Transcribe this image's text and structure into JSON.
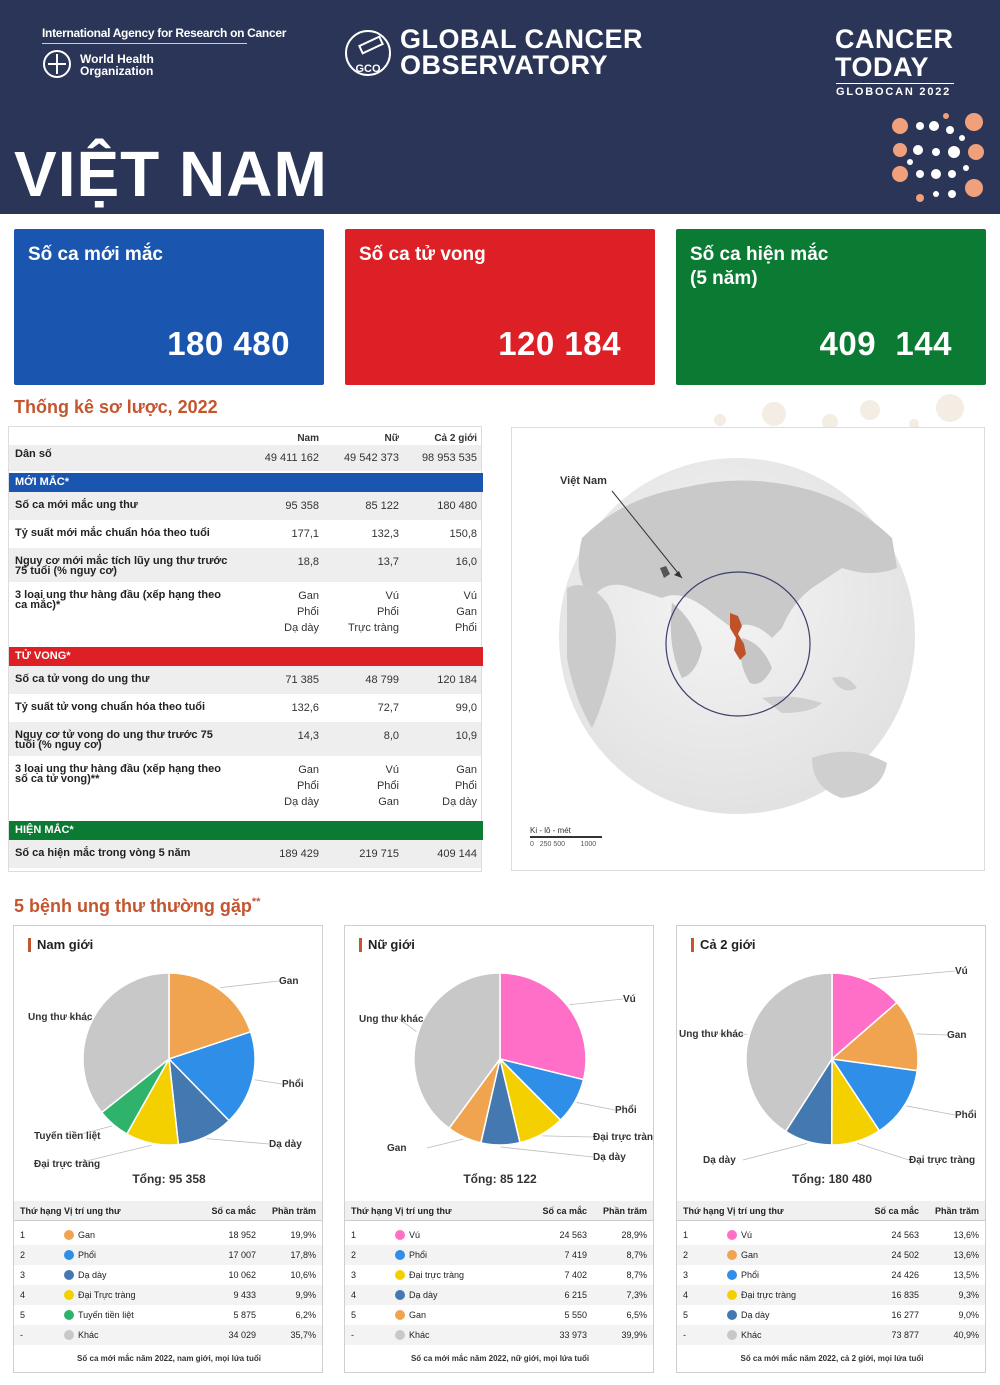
{
  "header": {
    "iarc": "International Agency for Research on Cancer",
    "who_line1": "World Health",
    "who_line2": "Organization",
    "gco_badge": "GCO",
    "gco_line1": "GLOBAL CANCER",
    "gco_line2": "OBSERVATORY",
    "ct_line1": "CANCER",
    "ct_line2": "TODAY",
    "ct_line3": "GLOBOCAN 2022",
    "country": "VIỆT NAM"
  },
  "kpis": [
    {
      "label": "Số ca mới mắc",
      "value": "180 480",
      "color": "#1a56b0"
    },
    {
      "label": "Số ca tử vong",
      "value": "120 184",
      "color": "#dd1f26"
    },
    {
      "label": "Số ca hiện mắc\n(5 năm)",
      "value": "409  144",
      "color": "#0b7a32"
    }
  ],
  "summary": {
    "title": "Thống kê sơ lược, 2022",
    "col_male": "Nam",
    "col_female": "Nữ",
    "col_both": "Cả 2 giới",
    "population": {
      "label": "Dân số",
      "male": "49 411 162",
      "female": "49 542 373",
      "both": "98 953 535"
    },
    "incidence_header": "MỚI MẮC*",
    "incidence_rows": [
      {
        "label": "Số ca mới mắc ung thư",
        "male": "95 358",
        "female": "85 122",
        "both": "180 480"
      },
      {
        "label": "Tỷ suất mới mắc chuẩn hóa theo tuổi",
        "male": "177,1",
        "female": "132,3",
        "both": "150,8"
      },
      {
        "label": "Nguy cơ mới mắc tích lũy ung thư trước\n75 tuổi (% nguy cơ)",
        "male": "18,8",
        "female": "13,7",
        "both": "16,0"
      },
      {
        "label": "3 loại ung thư hàng đầu (xếp hạng theo\nca mắc)*",
        "male": "Gan\nPhổi\nDạ dày",
        "female": "Vú\nPhổi\nTrực tràng",
        "both": "Vú\nGan\nPhổi"
      }
    ],
    "mortality_header": "TỬ VONG*",
    "mortality_rows": [
      {
        "label": "Số ca tử vong do ung thư",
        "male": "71 385",
        "female": "48 799",
        "both": "120 184"
      },
      {
        "label": "Tỷ suất tử vong chuẩn hóa theo tuổi",
        "male": "132,6",
        "female": "72,7",
        "both": "99,0"
      },
      {
        "label": "Nguy cơ tử vong do ung thư trước 75\ntuổi (% nguy cơ)",
        "male": "14,3",
        "female": "8,0",
        "both": "10,9"
      },
      {
        "label": "3 loại ung thư hàng đầu (xếp hạng theo\nsố ca tử vong)**",
        "male": "Gan\nPhổi\nDạ dày",
        "female": "Vú\nPhổi\nGan",
        "both": "Gan\nPhổi\nDạ dày"
      }
    ],
    "prevalence_header": "HIỆN MẮC*",
    "prevalence_rows": [
      {
        "label": "Số ca hiện mắc trong vòng 5 năm",
        "male": "189 429",
        "female": "219 715",
        "both": "409 144"
      }
    ],
    "colors": {
      "incidence": "#1a56b0",
      "mortality": "#dd1f26",
      "prevalence": "#0b7a32"
    }
  },
  "map": {
    "country_label": "Việt Nam",
    "scale_title": "Ki - lô - mét",
    "scale_ticks": "0   250 500        1000"
  },
  "top5": {
    "title": "5 bệnh ung thư thường gặp",
    "title_mark": "**",
    "table_headers": {
      "rank": "Thứ hạng",
      "site": "Vị trí ung thư",
      "cases": "Số ca mắc",
      "pct": "Phần trăm"
    }
  },
  "chart_data": [
    {
      "type": "pie",
      "title": "Nam giới",
      "total_label": "Tổng: 95 358",
      "labels": [
        "Gan",
        "Phổi",
        "Dạ dày",
        "Đại Trực tràng",
        "Tuyến tiền liệt",
        "Khác"
      ],
      "pie_labels": [
        "Gan",
        "Phổi",
        "Dạ dày",
        "Đại trực tràng",
        "Tuyến tiền liệt",
        "Ung thư khác"
      ],
      "ranks": [
        "1",
        "2",
        "3",
        "4",
        "5",
        "-"
      ],
      "values": [
        18952,
        17007,
        10062,
        9433,
        5875,
        34029
      ],
      "cases_text": [
        "18 952",
        "17 007",
        "10 062",
        "9 433",
        "5 875",
        "34 029"
      ],
      "pct_text": [
        "19,9%",
        "17,8%",
        "10,6%",
        "9,9%",
        "6,2%",
        "35,7%"
      ],
      "colors": [
        "#f0a450",
        "#2e8ee8",
        "#4478b0",
        "#f5d000",
        "#2fb36a",
        "#c8c8c8"
      ],
      "note": "Số ca mới mắc năm 2022, nam giới, mọi lứa tuổi"
    },
    {
      "type": "pie",
      "title": "Nữ giới",
      "total_label": "Tổng: 85 122",
      "labels": [
        "Vú",
        "Phổi",
        "Đại trực tràng",
        "Dạ dày",
        "Gan",
        "Khác"
      ],
      "pie_labels": [
        "Vú",
        "Phổi",
        "Đại trực tràng",
        "Dạ dày",
        "Gan",
        "Ung thư khác"
      ],
      "ranks": [
        "1",
        "2",
        "3",
        "4",
        "5",
        "-"
      ],
      "values": [
        24563,
        7419,
        7402,
        6215,
        5550,
        33973
      ],
      "cases_text": [
        "24 563",
        "7 419",
        "7 402",
        "6 215",
        "5 550",
        "33 973"
      ],
      "pct_text": [
        "28,9%",
        "8,7%",
        "8,7%",
        "7,3%",
        "6,5%",
        "39,9%"
      ],
      "colors": [
        "#ff6ec7",
        "#2e8ee8",
        "#f5d000",
        "#4478b0",
        "#f0a450",
        "#c8c8c8"
      ],
      "note": "Số ca mới mắc năm 2022, nữ giới, mọi lứa tuổi"
    },
    {
      "type": "pie",
      "title": "Cả 2 giới",
      "total_label": "Tổng: 180 480",
      "labels": [
        "Vú",
        "Gan",
        "Phổi",
        "Đại trực tràng",
        "Dạ dày",
        "Khác"
      ],
      "pie_labels": [
        "Vú",
        "Gan",
        "Phổi",
        "Đại trực tràng",
        "Dạ dày",
        "Ung thư khác"
      ],
      "ranks": [
        "1",
        "2",
        "3",
        "4",
        "5",
        "-"
      ],
      "values": [
        24563,
        24502,
        24426,
        16835,
        16277,
        73877
      ],
      "cases_text": [
        "24 563",
        "24 502",
        "24 426",
        "16 835",
        "16 277",
        "73 877"
      ],
      "pct_text": [
        "13,6%",
        "13,6%",
        "13,5%",
        "9,3%",
        "9,0%",
        "40,9%"
      ],
      "colors": [
        "#ff6ec7",
        "#f0a450",
        "#2e8ee8",
        "#f5d000",
        "#4478b0",
        "#c8c8c8"
      ],
      "note": "Số ca mới mắc năm 2022, cả 2 giới, mọi lứa tuổi"
    }
  ]
}
